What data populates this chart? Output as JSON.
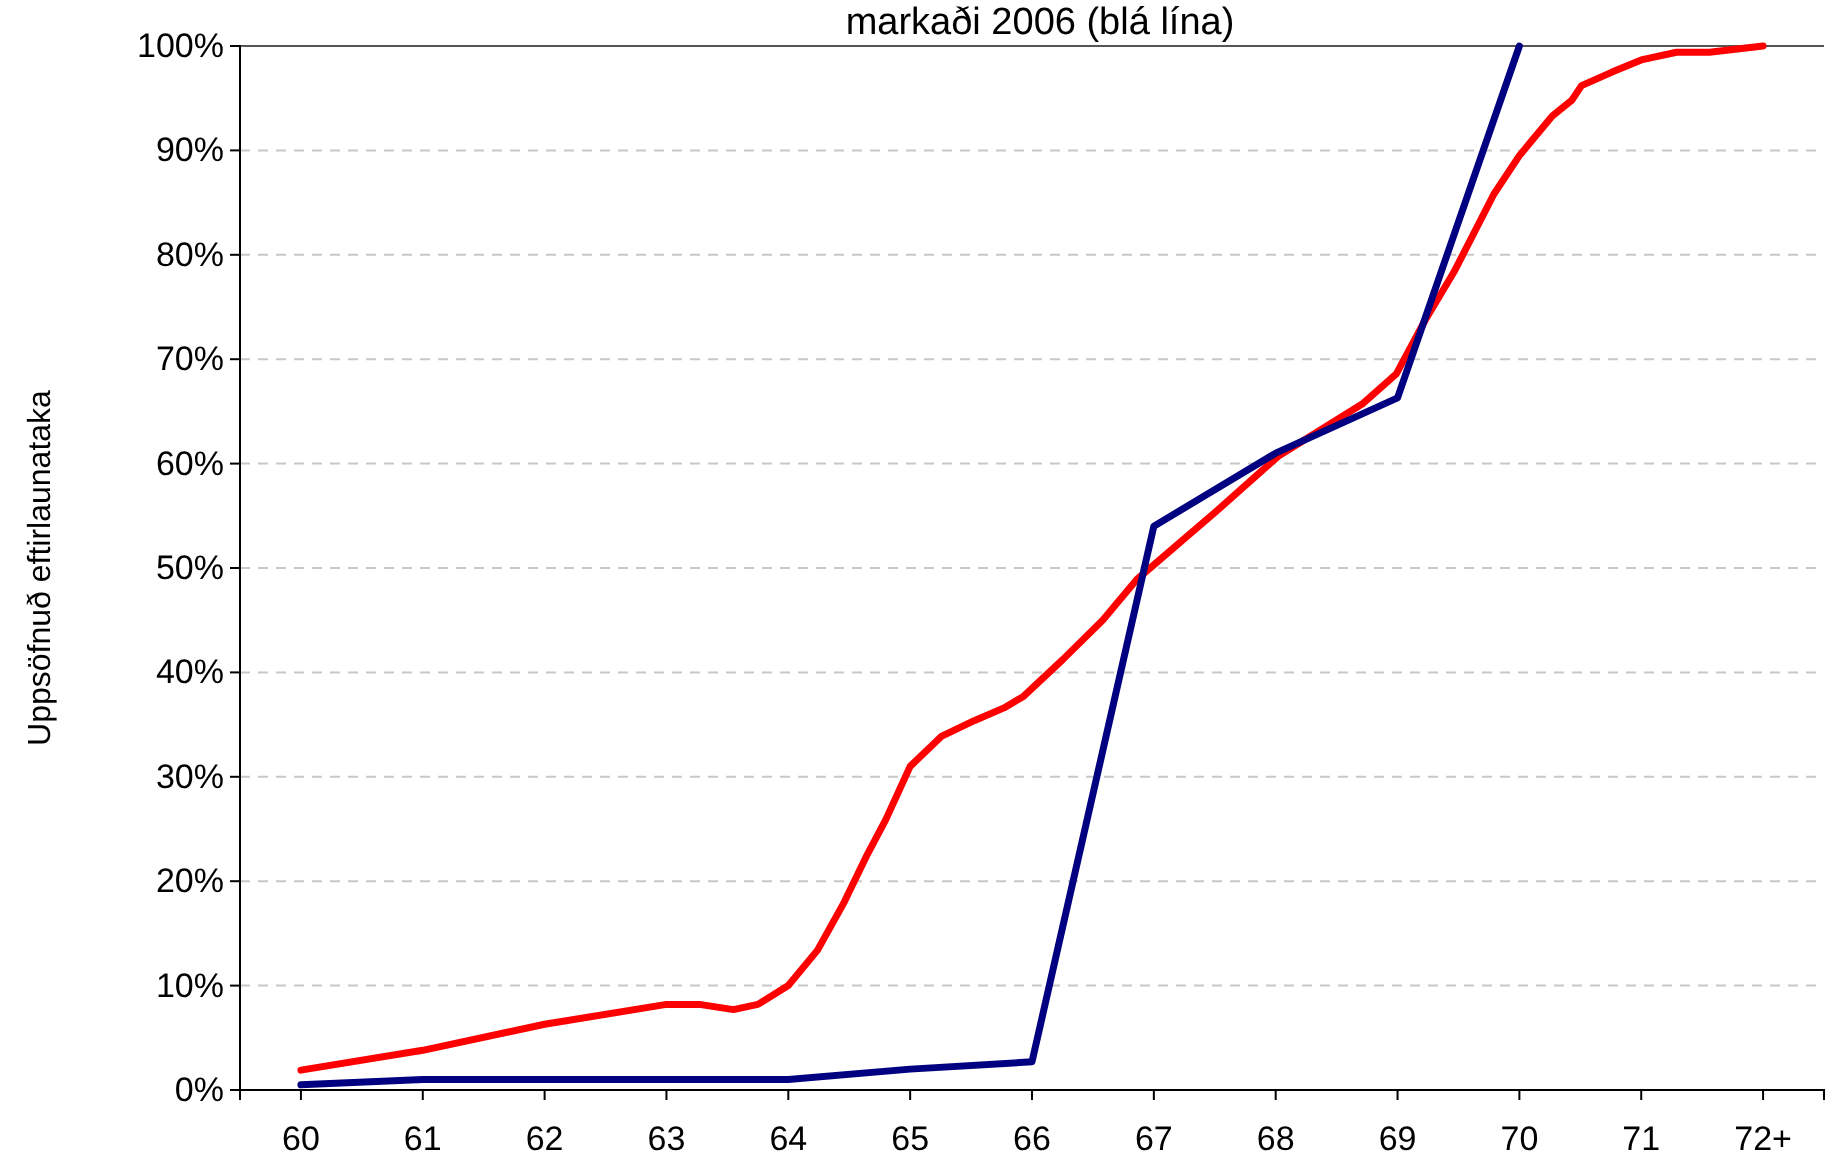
{
  "chart_data": {
    "type": "line",
    "title": "markaði 2006 (blá lína)",
    "ylabel": "Uppsöfnuð eftirlaunataka",
    "xlim": [
      59.5,
      72.5
    ],
    "xticks": [
      60,
      61,
      62,
      63,
      64,
      65,
      66,
      67,
      68,
      69,
      70,
      71,
      {
        "value": 72,
        "label": "72+"
      }
    ],
    "ylim": [
      0,
      100
    ],
    "yticks": [
      {
        "value": 0,
        "label": "0%"
      },
      {
        "value": 10,
        "label": "10%"
      },
      {
        "value": 20,
        "label": "20%"
      },
      {
        "value": 30,
        "label": "30%"
      },
      {
        "value": 40,
        "label": "40%"
      },
      {
        "value": 50,
        "label": "50%"
      },
      {
        "value": 60,
        "label": "60%"
      },
      {
        "value": 70,
        "label": "70%"
      },
      {
        "value": 80,
        "label": "80%"
      },
      {
        "value": 90,
        "label": "90%"
      },
      {
        "value": 100,
        "label": "100%"
      }
    ],
    "grid": "y",
    "marker": "none",
    "line_style": "solid",
    "series": [
      {
        "color": "#ff0000",
        "x": [
          60,
          61,
          62,
          63,
          63.27,
          63.55,
          63.75,
          64,
          64.24,
          64.45,
          64.65,
          64.8,
          65,
          65.26,
          65.53,
          65.77,
          65.93,
          66.25,
          66.58,
          66.86,
          67.49,
          68.02,
          68.71,
          68.99,
          69.23,
          69.47,
          69.79,
          70,
          70.27,
          70.43,
          70.51,
          70.76,
          71.01,
          71.29,
          71.56,
          72
        ],
        "values": [
          1.9,
          3.8,
          6.3,
          8.2,
          8.2,
          7.7,
          8.2,
          10,
          13.4,
          17.8,
          22.6,
          25.9,
          31,
          33.9,
          35.4,
          36.6,
          37.7,
          41.2,
          45,
          48.9,
          55.2,
          60.7,
          65.7,
          68.6,
          73.8,
          78.5,
          85.8,
          89.5,
          93.3,
          94.8,
          96.2,
          97.5,
          98.7,
          99.4,
          99.4,
          100
        ]
      },
      {
        "color": "#000080",
        "x": [
          60,
          61,
          62,
          63,
          64,
          65,
          66,
          67,
          68,
          69,
          70
        ],
        "values": [
          0.5,
          1,
          1,
          1,
          1,
          2,
          2.7,
          54,
          61,
          66.3,
          100
        ]
      }
    ]
  }
}
